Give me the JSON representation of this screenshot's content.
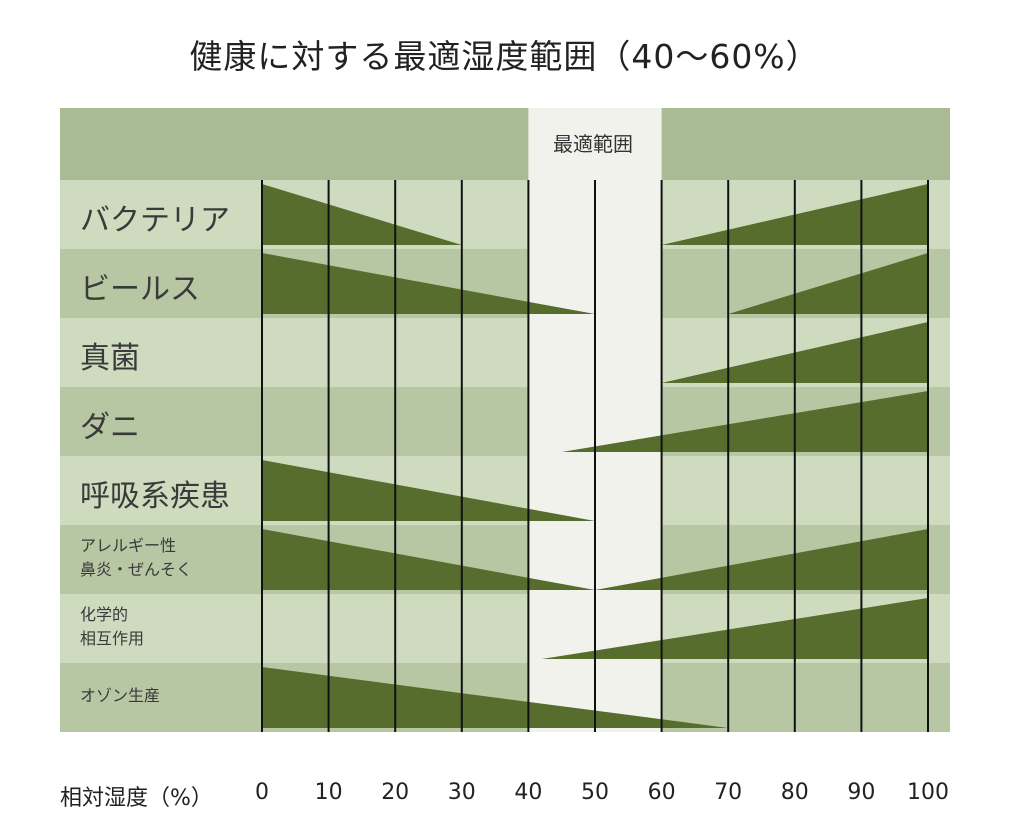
{
  "title": "健康に対する最適湿度範囲（40〜60%）",
  "colors": {
    "band_dark": "#b7c6a3",
    "band_light": "#cfdbbf",
    "header_band": "#a9bb92",
    "optimal_zone": "#f2f2ec",
    "wedge": "#566d2e",
    "grid": "#111111"
  },
  "chart_data": {
    "type": "range-wedge",
    "title": "健康に対する最適湿度範囲（40〜60%）",
    "xlabel": "相対湿度（%）",
    "xlim": [
      0,
      100
    ],
    "x_ticks": [
      0,
      10,
      20,
      30,
      40,
      50,
      60,
      70,
      80,
      90,
      100
    ],
    "optimal_range": {
      "label": "最適範囲",
      "from": 40,
      "to": 60
    },
    "rows": [
      {
        "label": [
          "バクテリア"
        ],
        "size": "big",
        "wedges": [
          {
            "side": "left",
            "from": 0,
            "to": 30
          },
          {
            "side": "right",
            "from": 60,
            "to": 100
          }
        ]
      },
      {
        "label": [
          "ビールス"
        ],
        "size": "big",
        "wedges": [
          {
            "side": "left",
            "from": 0,
            "to": 50
          },
          {
            "side": "right",
            "from": 70,
            "to": 100
          }
        ]
      },
      {
        "label": [
          "真菌"
        ],
        "size": "big",
        "wedges": [
          {
            "side": "right",
            "from": 60,
            "to": 100
          }
        ]
      },
      {
        "label": [
          "ダニ"
        ],
        "size": "big",
        "wedges": [
          {
            "side": "right",
            "from": 45,
            "to": 100
          }
        ]
      },
      {
        "label": [
          "呼吸系疾患"
        ],
        "size": "big",
        "wedges": [
          {
            "side": "left",
            "from": 0,
            "to": 50
          }
        ]
      },
      {
        "label": [
          "アレルギー性",
          "鼻炎・ぜんそく"
        ],
        "size": "small",
        "wedges": [
          {
            "side": "left",
            "from": 0,
            "to": 50
          },
          {
            "side": "right",
            "from": 50,
            "to": 100
          }
        ]
      },
      {
        "label": [
          "化学的",
          "相互作用"
        ],
        "size": "small",
        "wedges": [
          {
            "side": "right",
            "from": 42,
            "to": 100
          }
        ]
      },
      {
        "label": [
          "オゾン生産"
        ],
        "size": "small",
        "wedges": [
          {
            "side": "left",
            "from": 0,
            "to": 70
          }
        ]
      }
    ]
  }
}
